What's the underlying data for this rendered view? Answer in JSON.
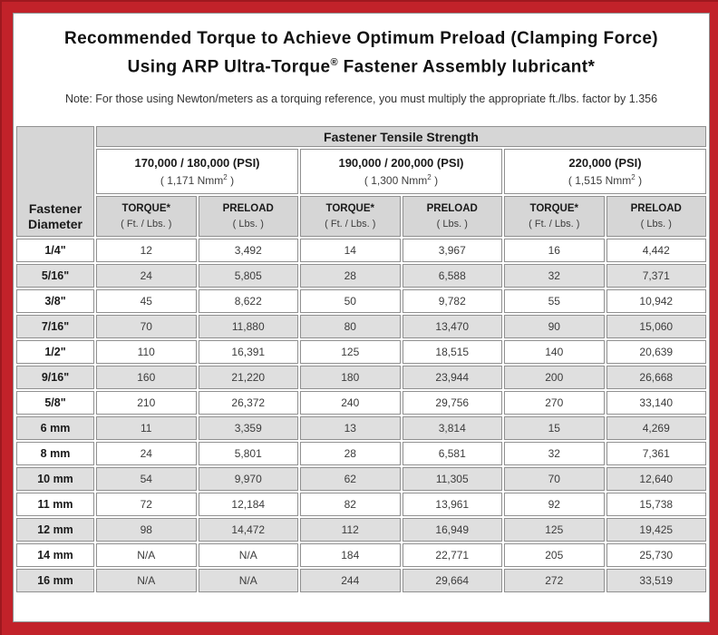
{
  "colors": {
    "frame_red": "#C2222A",
    "frame_dark_edge": "#9E181F",
    "header_gray": "#D6D6D6",
    "stripe_gray": "#DFDFDF",
    "cell_border_gray": "#909090",
    "text_black": "#111111",
    "text_gray": "#3C3C3C"
  },
  "title": {
    "line1": "Recommended Torque to Achieve Optimum Preload (Clamping Force)",
    "line2_pre": "Using ARP Ultra-Torque",
    "line2_sup": "®",
    "line2_post": " Fastener Assembly lubricant*",
    "note": "Note: For those using Newton/meters as a torquing reference, you must multiply the appropriate ft./lbs. factor by 1.356"
  },
  "chart_data": {
    "type": "table",
    "corner_header": "Fastener Diameter",
    "banner": "Fastener Tensile Strength",
    "groups": [
      {
        "psi": "170,000 / 180,000 (PSI)",
        "nmm_pre": "( 1,171 Nmm",
        "nmm_sup": "2",
        "nmm_post": " )"
      },
      {
        "psi": "190,000 / 200,000 (PSI)",
        "nmm_pre": "( 1,300 Nmm",
        "nmm_sup": "2",
        "nmm_post": " )"
      },
      {
        "psi": "220,000 (PSI)",
        "nmm_pre": "( 1,515 Nmm",
        "nmm_sup": "2",
        "nmm_post": " )"
      }
    ],
    "torque_label": "TORQUE*",
    "torque_unit": "( Ft. / Lbs. )",
    "preload_label": "PRELOAD",
    "preload_unit": "( Lbs. )",
    "rows": [
      {
        "diameter": "1/4\"",
        "values": [
          "12",
          "3,492",
          "14",
          "3,967",
          "16",
          "4,442"
        ]
      },
      {
        "diameter": "5/16\"",
        "values": [
          "24",
          "5,805",
          "28",
          "6,588",
          "32",
          "7,371"
        ]
      },
      {
        "diameter": "3/8\"",
        "values": [
          "45",
          "8,622",
          "50",
          "9,782",
          "55",
          "10,942"
        ]
      },
      {
        "diameter": "7/16\"",
        "values": [
          "70",
          "11,880",
          "80",
          "13,470",
          "90",
          "15,060"
        ]
      },
      {
        "diameter": "1/2\"",
        "values": [
          "110",
          "16,391",
          "125",
          "18,515",
          "140",
          "20,639"
        ]
      },
      {
        "diameter": "9/16\"",
        "values": [
          "160",
          "21,220",
          "180",
          "23,944",
          "200",
          "26,668"
        ]
      },
      {
        "diameter": "5/8\"",
        "values": [
          "210",
          "26,372",
          "240",
          "29,756",
          "270",
          "33,140"
        ]
      },
      {
        "diameter": "6 mm",
        "values": [
          "11",
          "3,359",
          "13",
          "3,814",
          "15",
          "4,269"
        ]
      },
      {
        "diameter": "8 mm",
        "values": [
          "24",
          "5,801",
          "28",
          "6,581",
          "32",
          "7,361"
        ]
      },
      {
        "diameter": "10 mm",
        "values": [
          "54",
          "9,970",
          "62",
          "11,305",
          "70",
          "12,640"
        ]
      },
      {
        "diameter": "11 mm",
        "values": [
          "72",
          "12,184",
          "82",
          "13,961",
          "92",
          "15,738"
        ]
      },
      {
        "diameter": "12 mm",
        "values": [
          "98",
          "14,472",
          "112",
          "16,949",
          "125",
          "19,425"
        ]
      },
      {
        "diameter": "14 mm",
        "values": [
          "N/A",
          "N/A",
          "184",
          "22,771",
          "205",
          "25,730"
        ]
      },
      {
        "diameter": "16 mm",
        "values": [
          "N/A",
          "N/A",
          "244",
          "29,664",
          "272",
          "33,519"
        ]
      }
    ]
  }
}
